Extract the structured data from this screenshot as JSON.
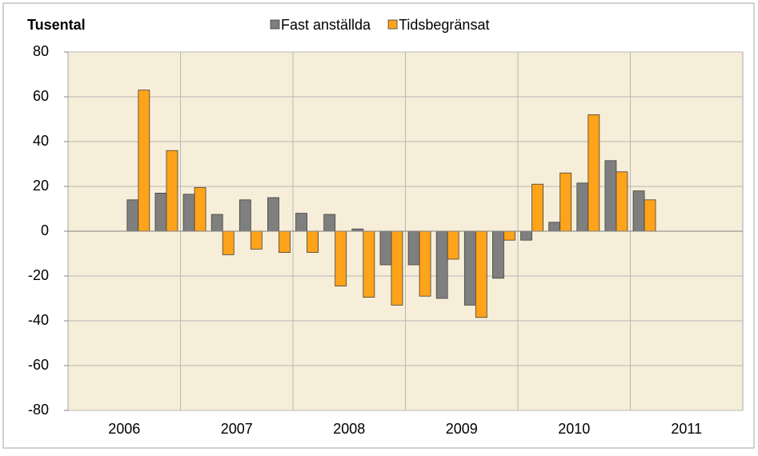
{
  "chart_data": {
    "type": "bar",
    "y_axis_label": "Tusental",
    "categories": [
      "2006",
      null,
      null,
      null,
      "2007",
      null,
      null,
      null,
      "2008",
      null,
      null,
      null,
      "2009",
      null,
      null,
      null,
      "2010",
      null,
      null,
      null,
      "2011",
      null,
      null,
      null
    ],
    "series": [
      {
        "name": "Fast anställda",
        "color": "#7f7f7f",
        "values": [
          null,
          null,
          14,
          17,
          16.5,
          7.5,
          14,
          15,
          8,
          7.5,
          1,
          -15,
          -15,
          -30,
          -33,
          -21,
          -4,
          4,
          21.5,
          31.5,
          18,
          null,
          null,
          null
        ]
      },
      {
        "name": "Tidsbegränsat",
        "color": "#ffa31a",
        "values": [
          null,
          null,
          63,
          36,
          19.5,
          -10.5,
          -8,
          -9.5,
          -9.5,
          -24.5,
          -29.5,
          -33,
          -29,
          -12.5,
          -38.5,
          -4,
          21,
          26,
          52,
          26.5,
          14,
          null,
          null,
          null
        ]
      }
    ],
    "ylim": [
      -80,
      80
    ],
    "yticks": [
      -80,
      -60,
      -40,
      -20,
      0,
      20,
      40,
      60,
      80
    ],
    "grid": true
  }
}
